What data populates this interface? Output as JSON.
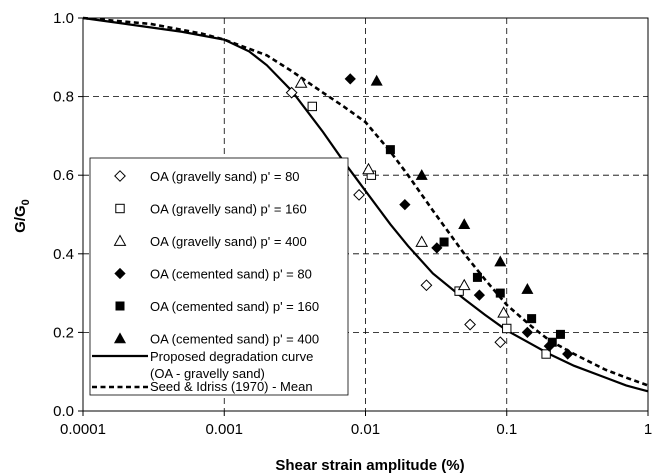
{
  "chart_data": {
    "type": "scatter",
    "xlabel": "Shear strain amplitude (%)",
    "ylabel_main": "G/G",
    "ylabel_sub": "0",
    "xscale": "log",
    "xlim": [
      0.0001,
      1
    ],
    "ylim": [
      0,
      1
    ],
    "grid": true,
    "legend_position": "bottom-left",
    "xticks": [
      {
        "value": 0.0001,
        "label": "0.0001"
      },
      {
        "value": 0.001,
        "label": "0.001"
      },
      {
        "value": 0.01,
        "label": "0.01"
      },
      {
        "value": 0.1,
        "label": "0.1"
      },
      {
        "value": 1,
        "label": "1"
      }
    ],
    "yticks": [
      {
        "value": 0,
        "label": "0.0"
      },
      {
        "value": 0.2,
        "label": "0.2"
      },
      {
        "value": 0.4,
        "label": "0.4"
      },
      {
        "value": 0.6,
        "label": "0.6"
      },
      {
        "value": 0.8,
        "label": "0.8"
      },
      {
        "value": 1,
        "label": "1.0"
      }
    ],
    "series": [
      {
        "name": "OA (gravelly sand) p' = 80",
        "marker": "diamond-open",
        "points": [
          [
            0.003,
            0.81
          ],
          [
            0.009,
            0.55
          ],
          [
            0.027,
            0.32
          ],
          [
            0.055,
            0.22
          ],
          [
            0.09,
            0.175
          ]
        ]
      },
      {
        "name": "OA (gravelly sand) p' = 160",
        "marker": "square-open",
        "points": [
          [
            0.0042,
            0.775
          ],
          [
            0.011,
            0.6
          ],
          [
            0.046,
            0.305
          ],
          [
            0.1,
            0.21
          ],
          [
            0.19,
            0.145
          ]
        ]
      },
      {
        "name": "OA (gravelly sand) p' = 400",
        "marker": "triangle-open",
        "points": [
          [
            0.0035,
            0.835
          ],
          [
            0.0105,
            0.615
          ],
          [
            0.025,
            0.43
          ],
          [
            0.05,
            0.32
          ],
          [
            0.095,
            0.25
          ]
        ]
      },
      {
        "name": "OA (cemented sand) p' = 80",
        "marker": "diamond-filled",
        "points": [
          [
            0.0078,
            0.845
          ],
          [
            0.019,
            0.525
          ],
          [
            0.032,
            0.415
          ],
          [
            0.064,
            0.295
          ],
          [
            0.14,
            0.2
          ],
          [
            0.2,
            0.165
          ],
          [
            0.27,
            0.145
          ]
        ]
      },
      {
        "name": "OA (cemented sand) p' = 160",
        "marker": "square-filled",
        "points": [
          [
            0.015,
            0.665
          ],
          [
            0.036,
            0.43
          ],
          [
            0.062,
            0.34
          ],
          [
            0.09,
            0.3
          ],
          [
            0.15,
            0.235
          ],
          [
            0.24,
            0.195
          ],
          [
            0.21,
            0.175
          ]
        ]
      },
      {
        "name": "OA (cemented sand) p' = 400",
        "marker": "triangle-filled",
        "points": [
          [
            0.012,
            0.84
          ],
          [
            0.025,
            0.6
          ],
          [
            0.05,
            0.475
          ],
          [
            0.09,
            0.38
          ],
          [
            0.14,
            0.31
          ]
        ]
      }
    ],
    "lines": [
      {
        "name": "Proposed degradation curve",
        "name_line2": "(OA - gravelly sand)",
        "style": "solid",
        "points": [
          [
            0.0001,
            1.0
          ],
          [
            0.0002,
            0.985
          ],
          [
            0.0005,
            0.965
          ],
          [
            0.001,
            0.945
          ],
          [
            0.0015,
            0.915
          ],
          [
            0.002,
            0.88
          ],
          [
            0.003,
            0.815
          ],
          [
            0.005,
            0.71
          ],
          [
            0.007,
            0.635
          ],
          [
            0.01,
            0.56
          ],
          [
            0.015,
            0.475
          ],
          [
            0.02,
            0.42
          ],
          [
            0.03,
            0.35
          ],
          [
            0.05,
            0.285
          ],
          [
            0.07,
            0.245
          ],
          [
            0.1,
            0.205
          ],
          [
            0.15,
            0.17
          ],
          [
            0.2,
            0.145
          ],
          [
            0.3,
            0.115
          ],
          [
            0.5,
            0.085
          ],
          [
            0.7,
            0.065
          ],
          [
            1.0,
            0.05
          ]
        ]
      },
      {
        "name": "Seed & Idriss (1970) - Mean",
        "style": "dashed",
        "points": [
          [
            0.0001,
            1.0
          ],
          [
            0.0003,
            0.985
          ],
          [
            0.0007,
            0.96
          ],
          [
            0.001,
            0.945
          ],
          [
            0.002,
            0.905
          ],
          [
            0.003,
            0.865
          ],
          [
            0.005,
            0.81
          ],
          [
            0.007,
            0.775
          ],
          [
            0.01,
            0.735
          ],
          [
            0.015,
            0.66
          ],
          [
            0.02,
            0.6
          ],
          [
            0.03,
            0.51
          ],
          [
            0.05,
            0.4
          ],
          [
            0.07,
            0.335
          ],
          [
            0.1,
            0.27
          ],
          [
            0.15,
            0.215
          ],
          [
            0.2,
            0.18
          ],
          [
            0.3,
            0.145
          ],
          [
            0.5,
            0.105
          ],
          [
            0.7,
            0.085
          ],
          [
            1.0,
            0.065
          ]
        ]
      }
    ]
  }
}
